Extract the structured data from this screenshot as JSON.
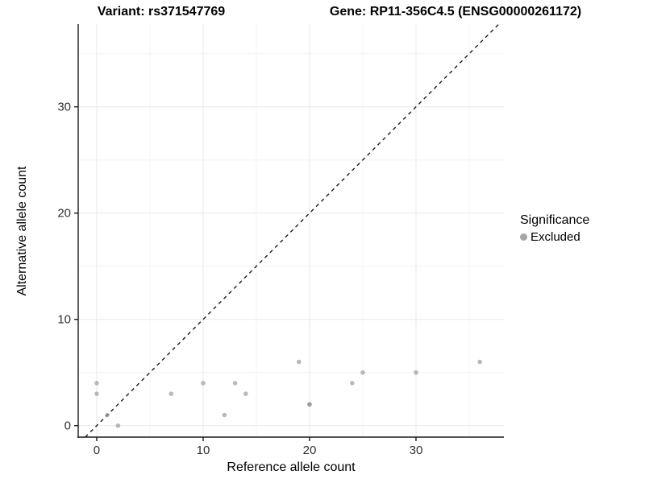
{
  "titles": {
    "variant": "Variant: rs371547769",
    "gene": "Gene: RP11-356C4.5 (ENSG00000261172)"
  },
  "axes": {
    "x": {
      "label": "Reference allele count",
      "ticks": [
        "0",
        "10",
        "20",
        "30"
      ],
      "tick_values": [
        0,
        10,
        20,
        30
      ]
    },
    "y": {
      "label": "Alternative allele count",
      "ticks": [
        "0",
        "10",
        "20",
        "30"
      ],
      "tick_values": [
        0,
        10,
        20,
        30
      ]
    }
  },
  "legend": {
    "title": "Significance",
    "items": [
      {
        "label": "Excluded",
        "color": "#a6a6a6"
      }
    ]
  },
  "colors": {
    "point": "#8c8c8c",
    "point_opacity": 0.6,
    "grid_major": "#e8e8e8",
    "grid_minor": "#f4f4f4",
    "axis": "#1a1a1a",
    "identity_line": "#1a1a1a"
  },
  "chart_data": {
    "type": "scatter",
    "title_left": "Variant: rs371547769",
    "title_right": "Gene: RP11-356C4.5 (ENSG00000261172)",
    "xlabel": "Reference allele count",
    "ylabel": "Alternative allele count",
    "xlim": [
      -1.74,
      38.26
    ],
    "ylim": [
      -1.08,
      37.78
    ],
    "x_major_grid": [
      0,
      10,
      20,
      30
    ],
    "x_minor_grid": [
      5,
      15,
      25,
      35
    ],
    "y_major_grid": [
      0,
      10,
      20,
      30
    ],
    "y_minor_grid": [
      5,
      15,
      25,
      35
    ],
    "identity_line": {
      "equation": "y=x",
      "style": "dashed"
    },
    "legend_position": "right",
    "series": [
      {
        "name": "Excluded",
        "points": [
          [
            0,
            3
          ],
          [
            0,
            4
          ],
          [
            1,
            1
          ],
          [
            2,
            0
          ],
          [
            7,
            3
          ],
          [
            10,
            4
          ],
          [
            12,
            1
          ],
          [
            13,
            4
          ],
          [
            14,
            3
          ],
          [
            19,
            6
          ],
          [
            20,
            2
          ],
          [
            20,
            2
          ],
          [
            24,
            4
          ],
          [
            25,
            5
          ],
          [
            30,
            5
          ],
          [
            36,
            6
          ]
        ]
      }
    ]
  }
}
